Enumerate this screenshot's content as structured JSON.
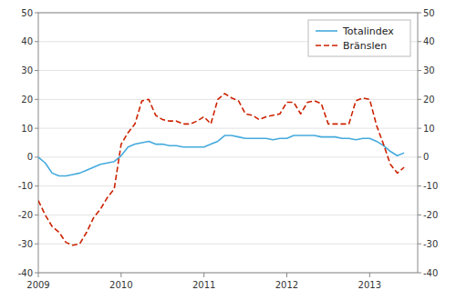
{
  "chart_data": {
    "type": "line",
    "x": [
      2009,
      2009.0833333333333,
      2009.1666666666667,
      2009.25,
      2009.3333333333333,
      2009.4166666666667,
      2009.5,
      2009.5833333333333,
      2009.6666666666667,
      2009.75,
      2009.8333333333333,
      2009.9166666666667,
      2010,
      2010.0833333333333,
      2010.1666666666667,
      2010.25,
      2010.3333333333333,
      2010.4166666666667,
      2010.5,
      2010.5833333333333,
      2010.6666666666667,
      2010.75,
      2010.8333333333333,
      2010.9166666666667,
      2011,
      2011.0833333333333,
      2011.1666666666667,
      2011.25,
      2011.3333333333333,
      2011.4166666666667,
      2011.5,
      2011.5833333333333,
      2011.6666666666667,
      2011.75,
      2011.8333333333333,
      2011.9166666666667,
      2012,
      2012.0833333333333,
      2012.1666666666667,
      2012.25,
      2012.3333333333333,
      2012.4166666666667,
      2012.5,
      2012.5833333333333,
      2012.6666666666667,
      2012.75,
      2012.8333333333333,
      2012.9166666666667,
      2013,
      2013.0833333333333,
      2013.1666666666667,
      2013.25,
      2013.3333333333333,
      2013.4166666666667
    ],
    "xlim": [
      2009.0,
      2013.58
    ],
    "xticks": [
      2009,
      2010,
      2011,
      2012,
      2013
    ],
    "ylim": [
      -40,
      50
    ],
    "yticks": [
      -40,
      -30,
      -20,
      -10,
      0,
      10,
      20,
      30,
      40,
      50
    ],
    "y2lim": [
      -40,
      50
    ],
    "y2ticks": [
      -40,
      -30,
      -20,
      -10,
      0,
      10,
      20,
      30,
      40,
      50
    ],
    "grid": true,
    "legend": "upper right",
    "series": [
      {
        "name": "Totalindex",
        "color": "#44aadd",
        "line_style": "solid",
        "values": [
          0.0,
          -2.0,
          -5.5,
          -6.5,
          -6.5,
          -6.0,
          -5.5,
          -4.5,
          -3.5,
          -2.5,
          -2.0,
          -1.5,
          0.5,
          3.5,
          4.5,
          5.0,
          5.5,
          4.5,
          4.5,
          4.0,
          4.0,
          3.5,
          3.5,
          3.5,
          3.5,
          4.5,
          5.5,
          7.5,
          7.5,
          7.0,
          6.5,
          6.5,
          6.5,
          6.5,
          6.0,
          6.5,
          6.5,
          7.5,
          7.5,
          7.5,
          7.5,
          7.0,
          7.0,
          7.0,
          6.5,
          6.5,
          6.0,
          6.5,
          6.5,
          5.5,
          4.0,
          2.0,
          0.5,
          1.5
        ]
      },
      {
        "name": "Bränslen",
        "color": "#cc2200",
        "line_style": "dashed",
        "axis": "y2",
        "values": [
          -15.0,
          -20.0,
          -24.0,
          -26.0,
          -29.5,
          -30.5,
          -30.0,
          -26.0,
          -21.0,
          -18.0,
          -14.0,
          -11.0,
          4.5,
          8.5,
          11.5,
          19.5,
          20.0,
          14.5,
          13.0,
          12.5,
          12.5,
          11.5,
          11.5,
          12.5,
          14.0,
          11.5,
          20.0,
          22.0,
          20.5,
          19.5,
          15.0,
          14.5,
          13.0,
          14.0,
          14.5,
          15.0,
          19.0,
          19.0,
          15.0,
          19.0,
          19.5,
          18.5,
          11.5,
          11.5,
          11.5,
          11.5,
          19.5,
          20.5,
          20.0,
          11.0,
          4.5,
          -2.5,
          -5.5,
          -3.5
        ]
      }
    ]
  }
}
